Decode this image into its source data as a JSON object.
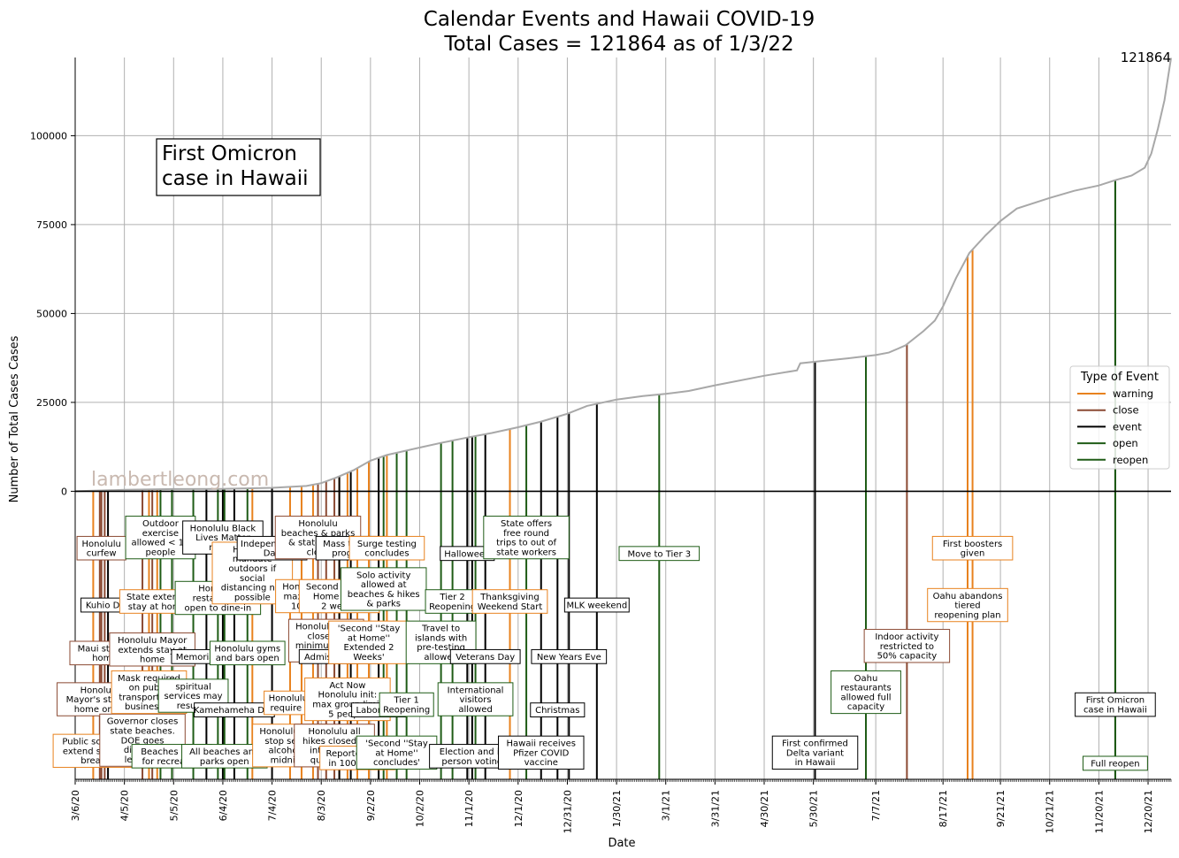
{
  "chart_data": {
    "type": "line",
    "title_line1": "Calendar Events and Hawaii COVID-19",
    "title_line2": "Total Cases = 121864 as of 1/3/22",
    "xlabel": "Date",
    "ylabel": "Number of Total Cases Cases",
    "x_range": [
      "2020-03-06",
      "2022-01-03"
    ],
    "ylim": [
      -81000,
      122000
    ],
    "yticks": [
      0,
      25000,
      50000,
      75000,
      100000
    ],
    "xticks": [
      "3/6/20",
      "4/5/20",
      "5/5/20",
      "6/4/20",
      "7/4/20",
      "8/3/20",
      "9/2/20",
      "10/2/20",
      "11/1/20",
      "12/1/20",
      "12/31/20",
      "1/30/21",
      "3/1/21",
      "3/31/21",
      "4/30/21",
      "5/30/21",
      "7/7/21",
      "8/17/21",
      "9/21/21",
      "10/21/21",
      "11/20/21",
      "12/20/21"
    ],
    "grid": true,
    "end_value_label": "121864",
    "watermark": "lambertleong.com",
    "callout": "First Omicron\ncase in Hawaii",
    "legend": {
      "title": "Type of Event",
      "position": "right",
      "items": [
        {
          "label": "warning",
          "color": "#e8821e"
        },
        {
          "label": "close",
          "color": "#8b4a33"
        },
        {
          "label": "event",
          "color": "#000000"
        },
        {
          "label": "open",
          "color": "#1f5c16"
        },
        {
          "label": "reopen",
          "color": "#1f5c16"
        }
      ]
    },
    "series": [
      {
        "color": "#a8a8a8",
        "points": [
          [
            "2020-03-06",
            0
          ],
          [
            "2020-04-05",
            400
          ],
          [
            "2020-05-05",
            620
          ],
          [
            "2020-06-04",
            680
          ],
          [
            "2020-07-04",
            980
          ],
          [
            "2020-07-25",
            1500
          ],
          [
            "2020-08-03",
            2300
          ],
          [
            "2020-08-12",
            3800
          ],
          [
            "2020-08-23",
            6000
          ],
          [
            "2020-09-02",
            8600
          ],
          [
            "2020-09-12",
            10200
          ],
          [
            "2020-10-02",
            12300
          ],
          [
            "2020-10-15",
            13600
          ],
          [
            "2020-11-01",
            15200
          ],
          [
            "2020-11-15",
            16400
          ],
          [
            "2020-12-01",
            18000
          ],
          [
            "2020-12-15",
            19600
          ],
          [
            "2020-12-31",
            21800
          ],
          [
            "2021-01-12",
            24000
          ],
          [
            "2021-01-30",
            25800
          ],
          [
            "2021-02-15",
            26800
          ],
          [
            "2021-03-01",
            27400
          ],
          [
            "2021-03-15",
            28200
          ],
          [
            "2021-03-31",
            29800
          ],
          [
            "2021-04-30",
            32500
          ],
          [
            "2021-05-20",
            34000
          ],
          [
            "2021-05-22",
            36000
          ],
          [
            "2021-05-30",
            36400
          ],
          [
            "2021-06-20",
            37400
          ],
          [
            "2021-07-07",
            38300
          ],
          [
            "2021-07-15",
            39000
          ],
          [
            "2021-07-25",
            41000
          ],
          [
            "2021-08-05",
            45000
          ],
          [
            "2021-08-12",
            48000
          ],
          [
            "2021-08-17",
            52000
          ],
          [
            "2021-08-25",
            60000
          ],
          [
            "2021-09-02",
            67000
          ],
          [
            "2021-09-12",
            72000
          ],
          [
            "2021-09-21",
            76000
          ],
          [
            "2021-10-01",
            79500
          ],
          [
            "2021-10-21",
            82500
          ],
          [
            "2021-11-05",
            84500
          ],
          [
            "2021-11-20",
            86000
          ],
          [
            "2021-11-30",
            87500
          ],
          [
            "2021-12-10",
            88800
          ],
          [
            "2021-12-18",
            91000
          ],
          [
            "2021-12-22",
            95000
          ],
          [
            "2021-12-26",
            102000
          ],
          [
            "2021-12-30",
            110000
          ],
          [
            "2022-01-03",
            121864
          ]
        ]
      }
    ],
    "events": [
      {
        "date": "2020-03-17",
        "type": "warning",
        "label": "Public schools\nextend spring\nbreak",
        "level": -73000
      },
      {
        "date": "2020-03-26",
        "type": "event",
        "label": "Kuhio Day",
        "level": -32000
      },
      {
        "date": "2020-03-24",
        "type": "close",
        "label": "Maui stay at\nhome",
        "level": -45500
      },
      {
        "date": "2020-03-21",
        "type": "close",
        "label": "Honolulu\nMayor's stay at\nhome order",
        "level": -58500
      },
      {
        "date": "2020-03-22",
        "type": "close",
        "label": "Honolulu\ncurfew",
        "level": -16000
      },
      {
        "date": "2020-04-16",
        "type": "close",
        "label": "Governor closes\nstate beaches.\nDOE goes\ndistance\nlearning",
        "level": -70000
      },
      {
        "date": "2020-04-20",
        "type": "warning",
        "label": "Mask required\non public\ntransport and\nbusinesses",
        "level": -56500
      },
      {
        "date": "2020-04-22",
        "type": "close",
        "label": "Honolulu Mayor\nextends stay at\nhome",
        "level": -44500
      },
      {
        "date": "2020-04-25",
        "type": "warning",
        "label": "State extends\nstay at home",
        "level": -31000
      },
      {
        "date": "2020-04-27",
        "type": "open",
        "label": "Outdoor\nexercise\nallowed < 10\npeople",
        "level": -13000
      },
      {
        "date": "2020-05-04",
        "type": "open",
        "label": "Beaches open\nfor recreation",
        "level": -74500
      },
      {
        "date": "2020-05-17",
        "type": "open",
        "label": "spiritual\nservices may\nresume",
        "level": -57500
      },
      {
        "date": "2020-05-25",
        "type": "event",
        "label": "Memorial Day",
        "level": -46500
      },
      {
        "date": "2020-06-01",
        "type": "open",
        "label": "Honolulu\nrestaurants\nopen to dine-in",
        "level": -30000
      },
      {
        "date": "2020-06-04",
        "type": "event",
        "label": "Honolulu Black\nLives Matter\nmarch",
        "level": -13000
      },
      {
        "date": "2020-06-11",
        "type": "event",
        "label": "Kamehameha Day",
        "level": -61500
      },
      {
        "date": "2020-06-05",
        "type": "open",
        "label": "All beaches and\nparks open",
        "level": -74500
      },
      {
        "date": "2020-06-19",
        "type": "open",
        "label": "Honolulu gyms\nand bars open",
        "level": -45500
      },
      {
        "date": "2020-06-22",
        "type": "warning",
        "label": "Honolulu\nmandate\noutdoors if\nsocial\ndistancing not\npossible",
        "level": -23000
      },
      {
        "date": "2020-07-04",
        "type": "event",
        "label": "Independence\nDay",
        "level": -16000
      },
      {
        "date": "2020-07-15",
        "type": "warning",
        "label": "Honolulu bars\nstop selling\nalcohol at\nmidnight",
        "level": -71500
      },
      {
        "date": "2020-07-22",
        "type": "warning",
        "label": "Honolulu gyms\nrequire masks",
        "level": -59500
      },
      {
        "date": "2020-07-29",
        "type": "warning",
        "label": "Honolulu bars\nmax group of\n10 people",
        "level": -29500
      },
      {
        "date": "2020-08-06",
        "type": "close",
        "label": "Honolulu bars\nclose for\nminimum of 3\nweeks",
        "level": -42000
      },
      {
        "date": "2020-08-01",
        "type": "close",
        "label": "Honolulu\nbeaches & parks\n& state parks\nclose",
        "level": -13000
      },
      {
        "date": "2020-08-11",
        "type": "close",
        "label": "Honolulu all\nhikes closed &\ninter-island\nquarantine",
        "level": -71500
      },
      {
        "date": "2020-08-14",
        "type": "warning",
        "label": "Second Stay at\nHome order\n2 weeks",
        "level": -29500
      },
      {
        "date": "2020-08-14",
        "type": "event",
        "label": "Admissions Day",
        "level": -46500
      },
      {
        "date": "2020-08-19",
        "type": "warning",
        "label": "Act Now\nHonolulu init:\nmax group limit\n5 people",
        "level": -58500
      },
      {
        "date": "2020-08-21",
        "type": "event",
        "label": "Mass testing\nprogram",
        "level": -16000
      },
      {
        "date": "2020-08-25",
        "type": "warning",
        "label": "Reported over\nin 1000 tests",
        "level": -75000
      },
      {
        "date": "2020-09-01",
        "type": "warning",
        "label": "'Second ''Stay\nat Home''\nExtended 2\nWeeks'",
        "level": -42500
      },
      {
        "date": "2020-09-07",
        "type": "event",
        "label": "Labor Day",
        "level": -61500
      },
      {
        "date": "2020-09-10",
        "type": "open",
        "label": "Solo activity\nallowed at\nbeaches & hikes\n& parks",
        "level": -27500
      },
      {
        "date": "2020-09-12",
        "type": "warning",
        "label": "Surge testing\nconcludes",
        "level": -16000
      },
      {
        "date": "2020-09-18",
        "type": "open",
        "label": "'Second ''Stay\nat Home''\nconcludes'",
        "level": -73500
      },
      {
        "date": "2020-09-24",
        "type": "open",
        "label": "Tier 1\nReopening",
        "level": -60000
      },
      {
        "date": "2020-10-15",
        "type": "open",
        "label": "Travel to\nislands with\npre-testing\nallowed",
        "level": -42500
      },
      {
        "date": "2020-10-22",
        "type": "open",
        "label": "Tier 2\nReopening",
        "level": -31000
      },
      {
        "date": "2020-10-31",
        "type": "event",
        "label": "Halloween",
        "level": -17500
      },
      {
        "date": "2020-11-03",
        "type": "event",
        "label": "Election and in\nperson voting",
        "level": -74500
      },
      {
        "date": "2020-11-05",
        "type": "open",
        "label": "International\nvisitors\nallowed",
        "level": -58500
      },
      {
        "date": "2020-11-11",
        "type": "event",
        "label": "Veterans Day",
        "level": -46500
      },
      {
        "date": "2020-11-26",
        "type": "warning",
        "label": "Thanksgiving\nWeekend Start",
        "level": -31000
      },
      {
        "date": "2020-12-06",
        "type": "open",
        "label": "State offers\nfree round\ntrips to out of\nstate workers",
        "level": -13000
      },
      {
        "date": "2020-12-15",
        "type": "event",
        "label": "Hawaii receives\nPfizer COVID\nvaccine",
        "level": -73500
      },
      {
        "date": "2020-12-25",
        "type": "event",
        "label": "Christmas",
        "level": -61500
      },
      {
        "date": "2021-01-01",
        "type": "event",
        "label": "New Years Eve",
        "level": -46500
      },
      {
        "date": "2021-01-18",
        "type": "event",
        "label": "MLK weekend",
        "level": -32000
      },
      {
        "date": "2021-02-25",
        "type": "open",
        "label": "Move to Tier 3",
        "level": -17500
      },
      {
        "date": "2021-05-31",
        "type": "event",
        "label": "First confirmed\nDelta variant\nin Hawaii",
        "level": -73500
      },
      {
        "date": "2021-07-01",
        "type": "open",
        "label": "Oahu\nrestaurants\nallowed full\ncapacity",
        "level": -56500
      },
      {
        "date": "2021-07-26",
        "type": "close",
        "label": "Indoor activity\nrestricted to\n50% capacity",
        "level": -43500
      },
      {
        "date": "2021-09-01",
        "type": "warning",
        "label": "Oahu abandons\ntiered\nreopening plan",
        "level": -32000
      },
      {
        "date": "2021-09-04",
        "type": "warning",
        "label": "First boosters\ngiven",
        "level": -16000
      },
      {
        "date": "2021-11-30",
        "type": "event",
        "label": "First Omicron\ncase in Hawaii",
        "level": -60000
      },
      {
        "date": "2021-11-30",
        "type": "reopen",
        "label": "Full reopen",
        "level": -76500
      }
    ]
  }
}
